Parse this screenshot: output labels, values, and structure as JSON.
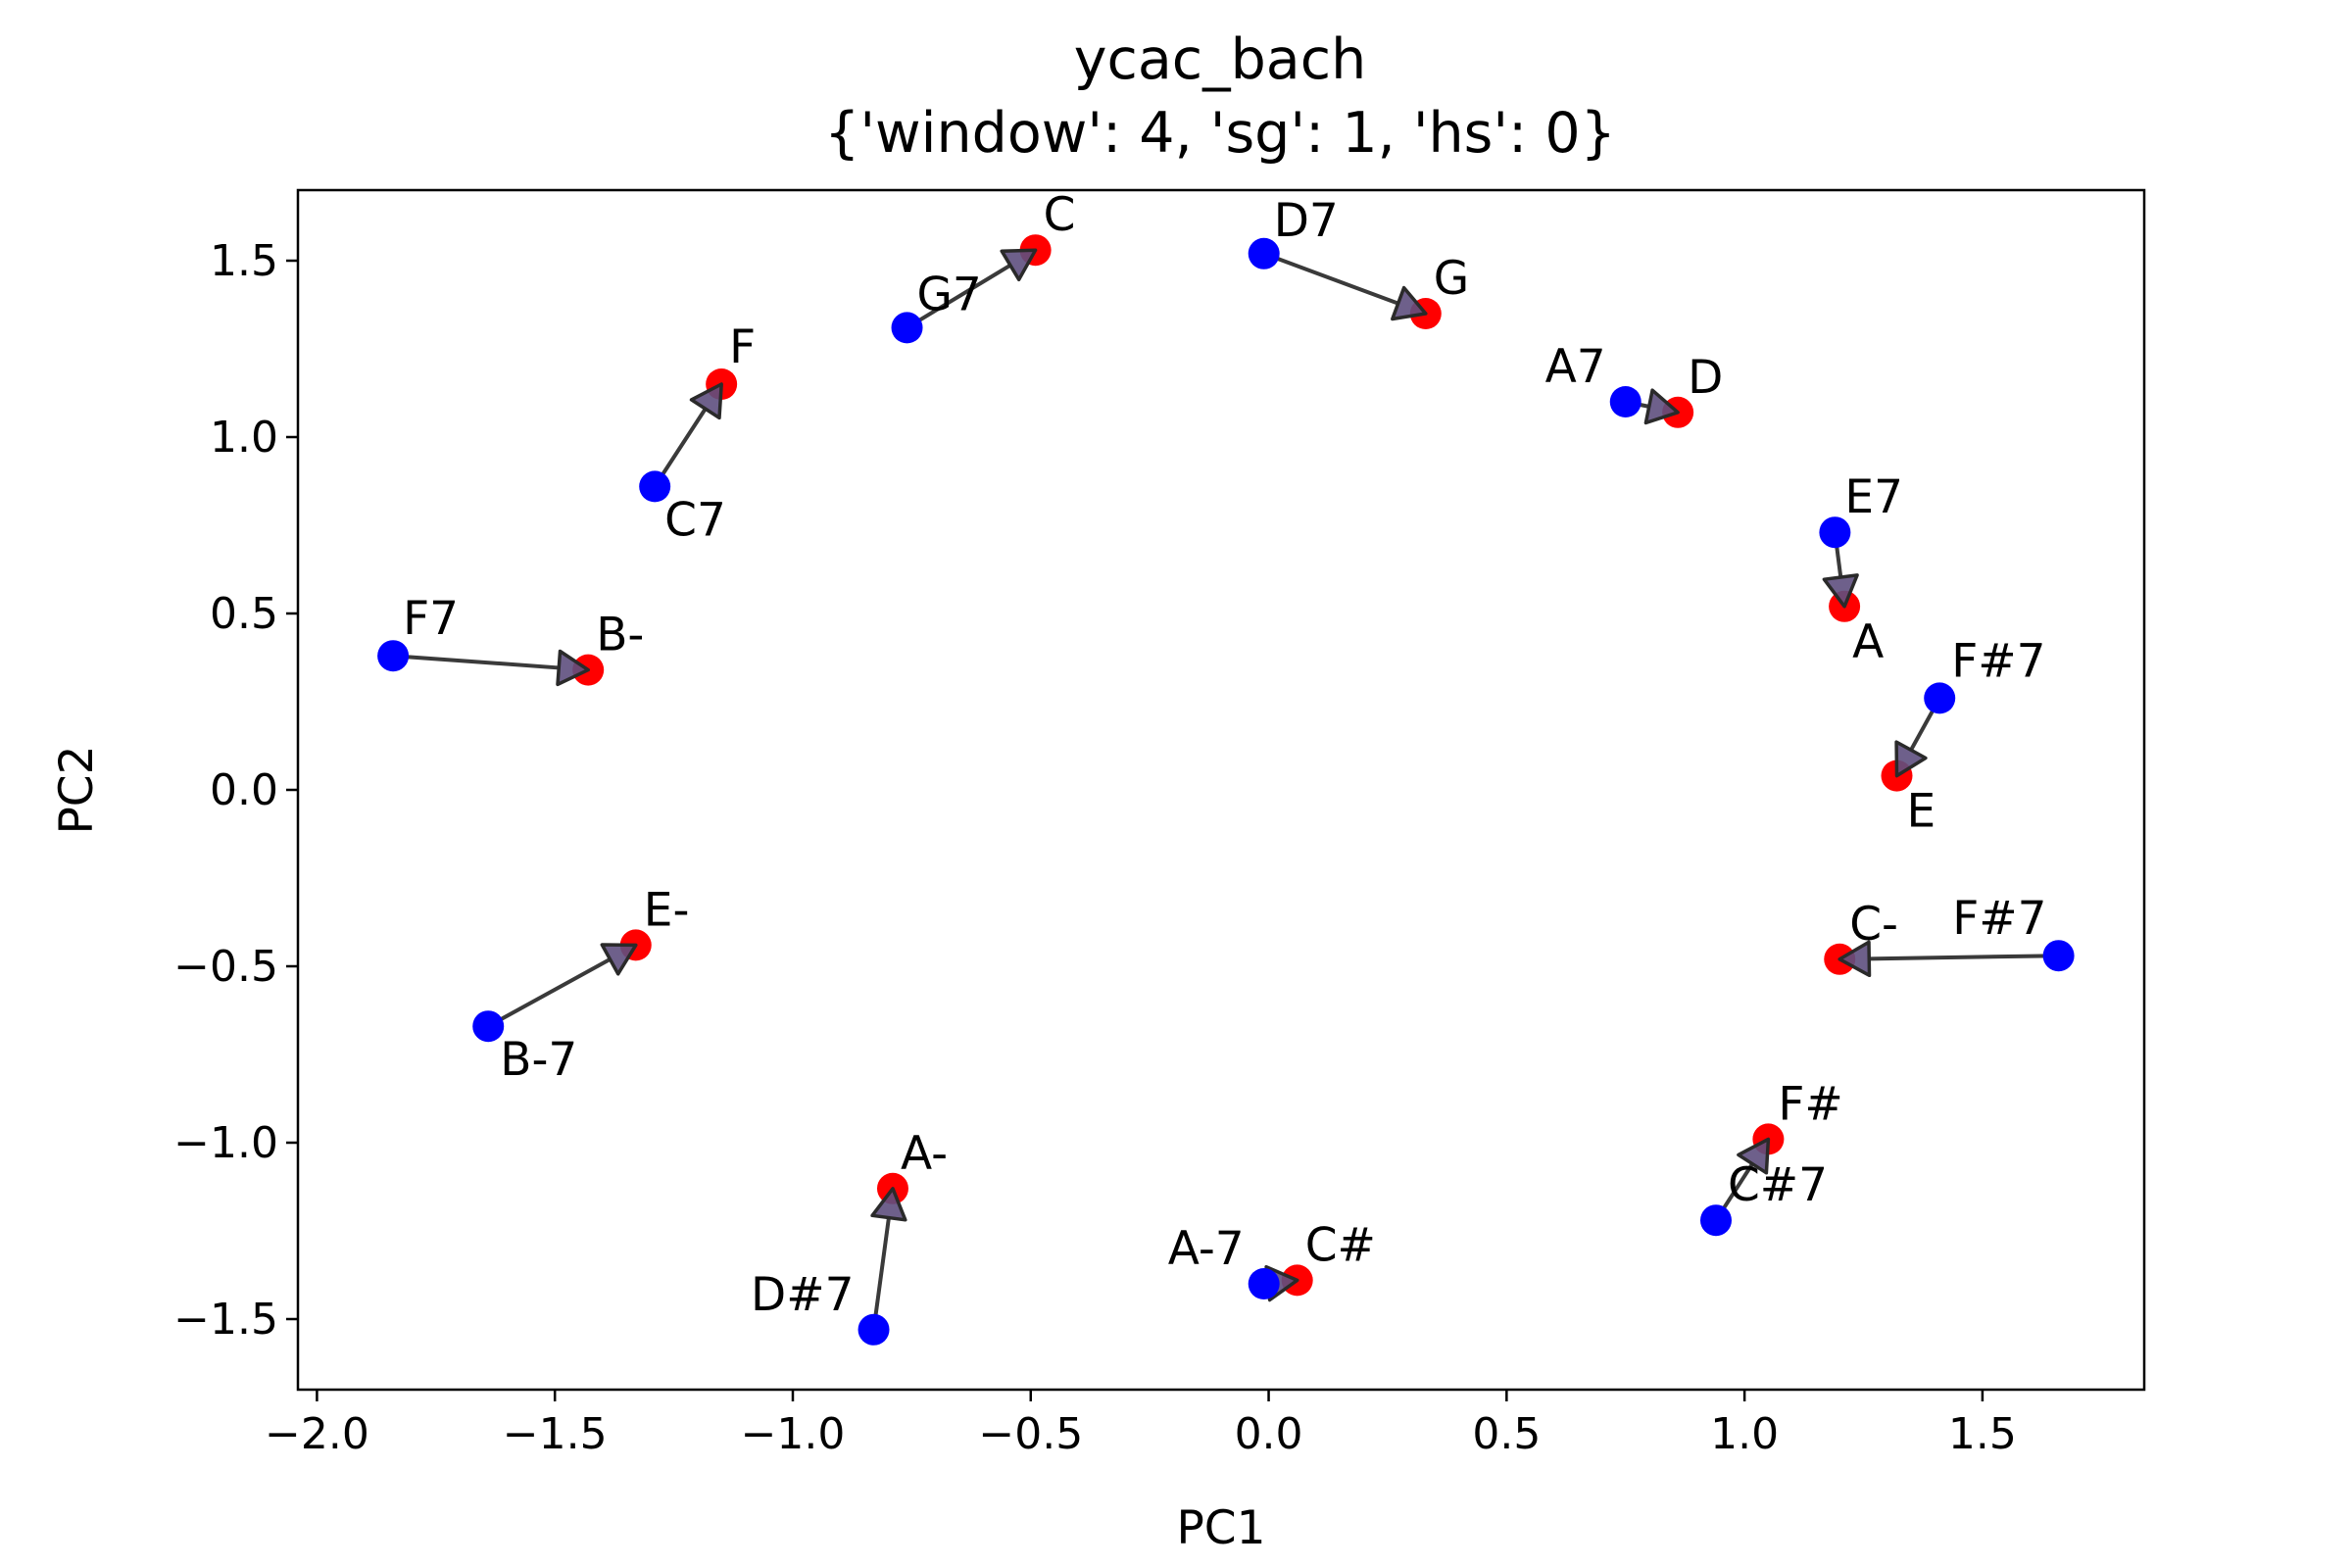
{
  "chart_data": {
    "type": "scatter",
    "title": "ycac_bach",
    "subtitle": "{'window': 4, 'sg': 1, 'hs': 0}",
    "xlabel": "PC1",
    "ylabel": "PC2",
    "xlim": [
      -2.04,
      1.84
    ],
    "ylim": [
      -1.7,
      1.7
    ],
    "x_ticks": [
      -2.0,
      -1.5,
      -1.0,
      -0.5,
      0.0,
      0.5,
      1.0,
      1.5
    ],
    "x_tick_labels": [
      "−2.0",
      "−1.5",
      "−1.0",
      "−0.5",
      "0.0",
      "0.5",
      "1.0",
      "1.5"
    ],
    "y_ticks": [
      1.5,
      1.0,
      0.5,
      0.0,
      -0.5,
      -1.0,
      -1.5
    ],
    "y_tick_labels": [
      "1.5",
      "1.0",
      "0.5",
      "0.0",
      "−0.5",
      "−1.0",
      "−1.5"
    ],
    "grid": false,
    "colors": {
      "dominant_seventh": "#0000ff",
      "tonic_triad": "#ff0000",
      "arrow_line": "#3a3a3a",
      "arrow_head_fill": "#5e4f7e",
      "arrow_head_edge": "#2a2a2a"
    },
    "pairs": [
      {
        "from": {
          "label": "G7",
          "x": -0.76,
          "y": 1.31
        },
        "to": {
          "label": "C",
          "x": -0.49,
          "y": 1.53
        }
      },
      {
        "from": {
          "label": "D7",
          "x": -0.01,
          "y": 1.52
        },
        "to": {
          "label": "G",
          "x": 0.33,
          "y": 1.35
        }
      },
      {
        "from": {
          "label": "A7",
          "x": 0.75,
          "y": 1.1
        },
        "to": {
          "label": "D",
          "x": 0.86,
          "y": 1.07
        }
      },
      {
        "from": {
          "label": "E7",
          "x": 1.19,
          "y": 0.73
        },
        "to": {
          "label": "A",
          "x": 1.21,
          "y": 0.52
        }
      },
      {
        "from": {
          "label": "F#7",
          "x": 1.41,
          "y": 0.26
        },
        "to": {
          "label": "E",
          "x": 1.32,
          "y": 0.04
        }
      },
      {
        "from": {
          "label": "F#7",
          "x": 1.66,
          "y": -0.47
        },
        "to": {
          "label": "C-",
          "x": 1.2,
          "y": -0.48
        }
      },
      {
        "from": {
          "label": "C#7",
          "x": 0.94,
          "y": -1.22
        },
        "to": {
          "label": "F#",
          "x": 1.05,
          "y": -0.99
        }
      },
      {
        "from": {
          "label": "A-7",
          "x": -0.01,
          "y": -1.4
        },
        "to": {
          "label": "C#",
          "x": 0.06,
          "y": -1.39
        }
      },
      {
        "from": {
          "label": "D#7",
          "x": -0.83,
          "y": -1.53
        },
        "to": {
          "label": "A-",
          "x": -0.79,
          "y": -1.13
        }
      },
      {
        "from": {
          "label": "B-7",
          "x": -1.64,
          "y": -0.67
        },
        "to": {
          "label": "E-",
          "x": -1.33,
          "y": -0.44
        }
      },
      {
        "from": {
          "label": "F7",
          "x": -1.84,
          "y": 0.38
        },
        "to": {
          "label": "B-",
          "x": -1.43,
          "y": 0.34
        }
      },
      {
        "from": {
          "label": "C7",
          "x": -1.29,
          "y": 0.86
        },
        "to": {
          "label": "F",
          "x": -1.15,
          "y": 1.15
        }
      }
    ]
  }
}
